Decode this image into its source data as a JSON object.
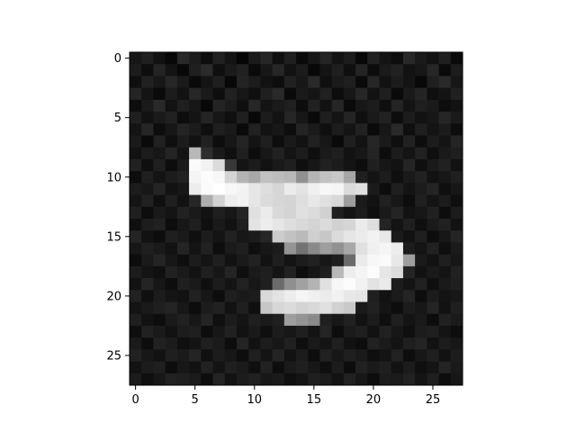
{
  "chart_data": {
    "type": "heatmap",
    "title": "",
    "xlabel": "",
    "ylabel": "",
    "colormap": "gray",
    "xlim": [
      -0.5,
      27.5
    ],
    "ylim": [
      27.5,
      -0.5
    ],
    "x_ticks": [
      0,
      5,
      10,
      15,
      20,
      25
    ],
    "y_ticks": [
      0,
      5,
      10,
      15,
      20,
      25
    ],
    "grid": false,
    "value_range": [
      0,
      1
    ],
    "rows": [
      [
        0.09,
        0.12,
        0.07,
        0.03,
        0.16,
        0.11,
        0.05,
        0.13,
        0.08,
        0.02,
        0.1,
        0.15,
        0.06,
        0.12,
        0.04,
        0.09,
        0.14,
        0.07,
        0.11,
        0.03,
        0.13,
        0.08,
        0.05,
        0.16,
        0.1,
        0.07,
        0.12,
        0.04
      ],
      [
        0.11,
        0.05,
        0.14,
        0.08,
        0.03,
        0.12,
        0.17,
        0.06,
        0.1,
        0.13,
        0.04,
        0.09,
        0.15,
        0.07,
        0.11,
        0.03,
        0.08,
        0.12,
        0.06,
        0.14,
        0.05,
        0.1,
        0.13,
        0.07,
        0.09,
        0.15,
        0.04,
        0.11
      ],
      [
        0.06,
        0.13,
        0.09,
        0.15,
        0.1,
        0.04,
        0.08,
        0.12,
        0.03,
        0.14,
        0.11,
        0.07,
        0.05,
        0.13,
        0.09,
        0.16,
        0.06,
        0.1,
        0.12,
        0.04,
        0.15,
        0.07,
        0.11,
        0.08,
        0.03,
        0.12,
        0.16,
        0.09
      ],
      [
        0.14,
        0.08,
        0.04,
        0.11,
        0.07,
        0.15,
        0.1,
        0.05,
        0.13,
        0.09,
        0.06,
        0.12,
        0.16,
        0.04,
        0.1,
        0.08,
        0.13,
        0.05,
        0.09,
        0.15,
        0.07,
        0.12,
        0.04,
        0.1,
        0.14,
        0.06,
        0.08,
        0.13
      ],
      [
        0.05,
        0.1,
        0.16,
        0.07,
        0.12,
        0.09,
        0.03,
        0.14,
        0.11,
        0.06,
        0.15,
        0.08,
        0.1,
        0.12,
        0.05,
        0.13,
        0.07,
        0.15,
        0.04,
        0.09,
        0.11,
        0.06,
        0.14,
        0.08,
        0.12,
        0.1,
        0.05,
        0.07
      ],
      [
        0.12,
        0.07,
        0.1,
        0.13,
        0.05,
        0.08,
        0.14,
        0.09,
        0.06,
        0.12,
        0.03,
        0.11,
        0.07,
        0.15,
        0.09,
        0.04,
        0.12,
        0.08,
        0.14,
        0.06,
        0.1,
        0.13,
        0.05,
        0.11,
        0.07,
        0.09,
        0.15,
        0.1
      ],
      [
        0.08,
        0.15,
        0.05,
        0.09,
        0.14,
        0.11,
        0.06,
        0.12,
        0.1,
        0.04,
        0.13,
        0.07,
        0.09,
        0.05,
        0.14,
        0.1,
        0.06,
        0.11,
        0.08,
        0.13,
        0.04,
        0.09,
        0.16,
        0.06,
        0.12,
        0.08,
        0.11,
        0.05
      ],
      [
        0.1,
        0.04,
        0.13,
        0.06,
        0.11,
        0.07,
        0.13,
        0.05,
        0.09,
        0.14,
        0.08,
        0.12,
        0.05,
        0.1,
        0.07,
        0.13,
        0.09,
        0.04,
        0.12,
        0.07,
        0.15,
        0.1,
        0.06,
        0.13,
        0.05,
        0.11,
        0.08,
        0.14
      ],
      [
        0.07,
        0.11,
        0.09,
        0.14,
        0.08,
        0.72,
        0.18,
        0.1,
        0.06,
        0.12,
        0.05,
        0.09,
        0.13,
        0.08,
        0.11,
        0.06,
        0.1,
        0.12,
        0.07,
        0.09,
        0.14,
        0.05,
        0.11,
        0.08,
        0.13,
        0.06,
        0.1,
        0.12
      ],
      [
        0.13,
        0.06,
        0.12,
        0.05,
        0.1,
        0.98,
        0.95,
        0.86,
        0.22,
        0.08,
        0.11,
        0.07,
        0.1,
        0.12,
        0.06,
        0.09,
        0.13,
        0.11,
        0.08,
        0.05,
        0.12,
        0.09,
        0.07,
        0.14,
        0.06,
        0.1,
        0.13,
        0.07
      ],
      [
        0.05,
        0.12,
        0.08,
        0.11,
        0.13,
        0.96,
        0.99,
        0.97,
        0.83,
        0.7,
        0.66,
        0.76,
        0.74,
        0.72,
        0.57,
        0.71,
        0.76,
        0.78,
        0.65,
        0.12,
        0.08,
        0.11,
        0.06,
        0.1,
        0.13,
        0.07,
        0.09,
        0.12
      ],
      [
        0.11,
        0.09,
        0.14,
        0.07,
        0.09,
        0.93,
        0.98,
        1.0,
        0.97,
        0.95,
        0.9,
        0.87,
        0.84,
        0.92,
        0.89,
        0.94,
        0.97,
        0.96,
        0.86,
        0.88,
        0.1,
        0.05,
        0.12,
        0.08,
        0.11,
        0.14,
        0.06,
        0.09
      ],
      [
        0.08,
        0.13,
        0.06,
        0.12,
        0.07,
        0.15,
        0.68,
        0.82,
        0.93,
        0.95,
        0.9,
        0.86,
        0.84,
        0.83,
        0.87,
        0.91,
        0.88,
        0.85,
        0.62,
        0.1,
        0.07,
        0.13,
        0.09,
        0.05,
        0.12,
        0.08,
        0.11,
        0.06
      ],
      [
        0.12,
        0.05,
        0.1,
        0.08,
        0.13,
        0.1,
        0.07,
        0.12,
        0.09,
        0.14,
        0.88,
        0.92,
        0.85,
        0.83,
        0.88,
        0.86,
        0.82,
        0.12,
        0.08,
        0.11,
        0.06,
        0.1,
        0.14,
        0.07,
        0.09,
        0.13,
        0.05,
        0.11
      ],
      [
        0.06,
        0.11,
        0.13,
        0.05,
        0.09,
        0.12,
        0.06,
        0.1,
        0.07,
        0.12,
        0.89,
        0.93,
        0.9,
        0.87,
        0.85,
        0.83,
        0.86,
        0.82,
        0.84,
        0.92,
        0.87,
        0.14,
        0.08,
        0.12,
        0.06,
        0.1,
        0.13,
        0.07
      ],
      [
        0.14,
        0.07,
        0.05,
        0.12,
        0.1,
        0.06,
        0.11,
        0.08,
        0.13,
        0.09,
        0.11,
        0.15,
        0.8,
        0.76,
        0.73,
        0.81,
        0.78,
        0.86,
        0.9,
        0.92,
        0.95,
        0.91,
        0.1,
        0.07,
        0.12,
        0.05,
        0.09,
        0.14
      ],
      [
        0.09,
        0.12,
        0.1,
        0.07,
        0.14,
        0.08,
        0.13,
        0.05,
        0.1,
        0.12,
        0.06,
        0.09,
        0.11,
        0.58,
        0.45,
        0.54,
        0.62,
        0.57,
        0.66,
        0.88,
        0.94,
        0.96,
        0.93,
        0.11,
        0.08,
        0.13,
        0.06,
        0.1
      ],
      [
        0.05,
        0.1,
        0.14,
        0.09,
        0.06,
        0.11,
        0.08,
        0.12,
        0.07,
        0.1,
        0.13,
        0.07,
        0.12,
        0.08,
        0.11,
        0.13,
        0.09,
        0.12,
        0.42,
        0.92,
        0.97,
        0.98,
        0.91,
        0.62,
        0.1,
        0.07,
        0.12,
        0.09
      ],
      [
        0.11,
        0.08,
        0.06,
        0.13,
        0.1,
        0.07,
        0.12,
        0.09,
        0.14,
        0.06,
        0.1,
        0.12,
        0.08,
        0.13,
        0.05,
        0.09,
        0.12,
        0.72,
        0.93,
        0.96,
        0.99,
        0.9,
        0.86,
        0.14,
        0.07,
        0.1,
        0.08,
        0.13
      ],
      [
        0.07,
        0.14,
        0.09,
        0.05,
        0.12,
        0.1,
        0.06,
        0.11,
        0.08,
        0.13,
        0.09,
        0.12,
        0.42,
        0.56,
        0.63,
        0.7,
        0.88,
        0.97,
        0.99,
        0.95,
        0.89,
        0.92,
        0.11,
        0.08,
        0.13,
        0.06,
        0.1,
        0.12
      ],
      [
        0.13,
        0.06,
        0.11,
        0.08,
        0.07,
        0.13,
        0.09,
        0.05,
        0.12,
        0.1,
        0.11,
        0.85,
        0.89,
        0.93,
        0.96,
        0.94,
        0.92,
        0.95,
        0.91,
        0.9,
        0.12,
        0.07,
        0.1,
        0.14,
        0.05,
        0.11,
        0.08,
        0.09
      ],
      [
        0.08,
        0.1,
        0.12,
        0.14,
        0.09,
        0.05,
        0.11,
        0.13,
        0.07,
        0.12,
        0.06,
        0.78,
        0.84,
        0.86,
        0.83,
        0.85,
        0.88,
        0.82,
        0.79,
        0.1,
        0.13,
        0.08,
        0.05,
        0.11,
        0.09,
        0.14,
        0.07,
        0.12
      ],
      [
        0.12,
        0.07,
        0.05,
        0.1,
        0.13,
        0.09,
        0.14,
        0.06,
        0.11,
        0.08,
        0.12,
        0.1,
        0.12,
        0.62,
        0.58,
        0.54,
        0.12,
        0.09,
        0.13,
        0.07,
        0.11,
        0.06,
        0.12,
        0.08,
        0.1,
        0.05,
        0.13,
        0.1
      ],
      [
        0.06,
        0.13,
        0.1,
        0.07,
        0.11,
        0.12,
        0.05,
        0.09,
        0.13,
        0.07,
        0.1,
        0.06,
        0.11,
        0.09,
        0.12,
        0.08,
        0.14,
        0.05,
        0.1,
        0.12,
        0.07,
        0.13,
        0.09,
        0.06,
        0.11,
        0.12,
        0.08,
        0.05
      ],
      [
        0.1,
        0.05,
        0.13,
        0.11,
        0.06,
        0.08,
        0.12,
        0.1,
        0.05,
        0.14,
        0.07,
        0.11,
        0.09,
        0.13,
        0.06,
        0.1,
        0.08,
        0.12,
        0.07,
        0.05,
        0.13,
        0.1,
        0.08,
        0.12,
        0.14,
        0.07,
        0.11,
        0.09
      ],
      [
        0.13,
        0.09,
        0.07,
        0.12,
        0.1,
        0.14,
        0.06,
        0.11,
        0.09,
        0.05,
        0.12,
        0.08,
        0.14,
        0.07,
        0.11,
        0.05,
        0.13,
        0.09,
        0.12,
        0.1,
        0.06,
        0.08,
        0.13,
        0.05,
        0.09,
        0.12,
        0.07,
        0.11
      ],
      [
        0.07,
        0.11,
        0.12,
        0.05,
        0.09,
        0.07,
        0.13,
        0.08,
        0.12,
        0.1,
        0.06,
        0.13,
        0.05,
        0.1,
        0.12,
        0.09,
        0.06,
        0.11,
        0.05,
        0.13,
        0.1,
        0.12,
        0.07,
        0.11,
        0.06,
        0.08,
        0.14,
        0.1
      ],
      [
        0.11,
        0.06,
        0.09,
        0.13,
        0.12,
        0.1,
        0.05,
        0.14,
        0.07,
        0.11,
        0.13,
        0.09,
        0.1,
        0.06,
        0.08,
        0.12,
        0.11,
        0.07,
        0.13,
        0.09,
        0.05,
        0.11,
        0.1,
        0.13,
        0.08,
        0.12,
        0.05,
        0.09
      ]
    ]
  }
}
